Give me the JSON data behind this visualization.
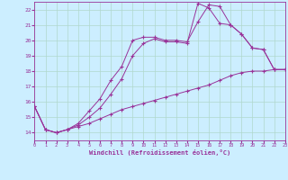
{
  "xlabel": "Windchill (Refroidissement éolien,°C)",
  "bg_color": "#cceeff",
  "line_color": "#993399",
  "grid_color": "#aaddcc",
  "xlim": [
    0,
    23
  ],
  "ylim": [
    13.5,
    22.5
  ],
  "xticks": [
    0,
    1,
    2,
    3,
    4,
    5,
    6,
    7,
    8,
    9,
    10,
    11,
    12,
    13,
    14,
    15,
    16,
    17,
    18,
    19,
    20,
    21,
    22,
    23
  ],
  "yticks": [
    14,
    15,
    16,
    17,
    18,
    19,
    20,
    21,
    22
  ],
  "line1_x": [
    0,
    1,
    2,
    3,
    4,
    5,
    6,
    7,
    8,
    9,
    10,
    11,
    12,
    13,
    14,
    15,
    16,
    17,
    18,
    19,
    20,
    21,
    22,
    23
  ],
  "line1_y": [
    15.7,
    14.2,
    14.0,
    14.2,
    14.6,
    15.4,
    16.2,
    17.4,
    18.3,
    20.0,
    20.2,
    20.2,
    20.0,
    20.0,
    19.9,
    21.2,
    22.3,
    22.2,
    21.0,
    20.4,
    19.5,
    19.4,
    18.1,
    18.1
  ],
  "line2_x": [
    0,
    1,
    2,
    3,
    4,
    5,
    6,
    7,
    8,
    9,
    10,
    11,
    12,
    13,
    14,
    15,
    16,
    17,
    18,
    19,
    20,
    21,
    22,
    23
  ],
  "line2_y": [
    15.7,
    14.2,
    14.0,
    14.2,
    14.5,
    15.0,
    15.6,
    16.5,
    17.5,
    19.0,
    19.8,
    20.1,
    19.9,
    19.9,
    19.8,
    22.4,
    22.1,
    21.1,
    21.0,
    20.4,
    19.5,
    19.4,
    18.1,
    18.1
  ],
  "line3_x": [
    0,
    1,
    2,
    3,
    4,
    5,
    6,
    7,
    8,
    9,
    10,
    11,
    12,
    13,
    14,
    15,
    16,
    17,
    18,
    19,
    20,
    21,
    22,
    23
  ],
  "line3_y": [
    15.7,
    14.2,
    14.0,
    14.2,
    14.4,
    14.6,
    14.9,
    15.2,
    15.5,
    15.7,
    15.9,
    16.1,
    16.3,
    16.5,
    16.7,
    16.9,
    17.1,
    17.4,
    17.7,
    17.9,
    18.0,
    18.0,
    18.1,
    18.1
  ]
}
